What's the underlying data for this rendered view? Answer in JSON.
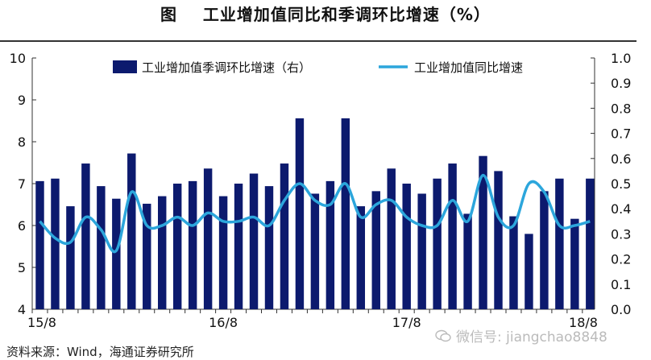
{
  "title": "图    工业增加值同比和季调环比增速（%）",
  "footer": "资料来源：Wind，海通证券研究所",
  "watermark": "微信号: jiangchao8848",
  "colors": {
    "bar": "#0c1a6e",
    "line": "#2ca6dc"
  },
  "chart_data": {
    "type": "bar+line",
    "title": "工业增加值同比和季调环比增速（%）",
    "x_tick_labels": [
      "15/8",
      "16/8",
      "17/8",
      "18/8"
    ],
    "x": [
      "15/8",
      "15/9",
      "15/10",
      "15/11",
      "15/12",
      "16/1",
      "16/2",
      "16/3",
      "16/4",
      "16/5",
      "16/6",
      "16/7",
      "16/8",
      "16/9",
      "16/10",
      "16/11",
      "16/12",
      "17/1",
      "17/2",
      "17/3",
      "17/4",
      "17/5",
      "17/6",
      "17/7",
      "17/8",
      "17/9",
      "17/10",
      "17/11",
      "17/12",
      "18/1",
      "18/2",
      "18/3",
      "18/4",
      "18/5",
      "18/6",
      "18/7",
      "18/8"
    ],
    "y_left": {
      "min": 4,
      "max": 10,
      "ticks": [
        4,
        5,
        6,
        7,
        8,
        9,
        10
      ]
    },
    "y_right": {
      "min": 0.0,
      "max": 1.0,
      "ticks": [
        "0.0",
        "0.1",
        "0.2",
        "0.3",
        "0.4",
        "0.5",
        "0.6",
        "0.7",
        "0.8",
        "0.9",
        "1.0"
      ]
    },
    "legend": "top",
    "series": [
      {
        "name": "工业增加值季调环比增速（右）",
        "type": "bar",
        "axis": "right",
        "values": [
          0.51,
          0.52,
          0.41,
          0.58,
          0.49,
          0.44,
          0.62,
          0.42,
          0.45,
          0.5,
          0.51,
          0.56,
          0.45,
          0.5,
          0.54,
          0.49,
          0.58,
          0.76,
          0.46,
          0.51,
          0.76,
          0.41,
          0.47,
          0.56,
          0.5,
          0.46,
          0.52,
          0.58,
          0.38,
          0.61,
          0.55,
          0.37,
          0.3,
          0.47,
          0.52,
          0.36,
          0.52
        ]
      },
      {
        "name": "工业增加值同比增速",
        "type": "line",
        "axis": "left",
        "values": [
          6.1,
          5.7,
          5.6,
          6.2,
          5.9,
          5.4,
          6.8,
          6.0,
          6.0,
          6.2,
          6.0,
          6.3,
          6.1,
          6.1,
          6.2,
          6.0,
          6.6,
          7.0,
          6.6,
          6.5,
          7.0,
          6.2,
          6.5,
          6.6,
          6.2,
          6.0,
          6.0,
          6.6,
          6.1,
          7.2,
          6.2,
          6.0,
          7.0,
          6.8,
          6.0,
          6.0,
          6.1
        ]
      }
    ]
  }
}
